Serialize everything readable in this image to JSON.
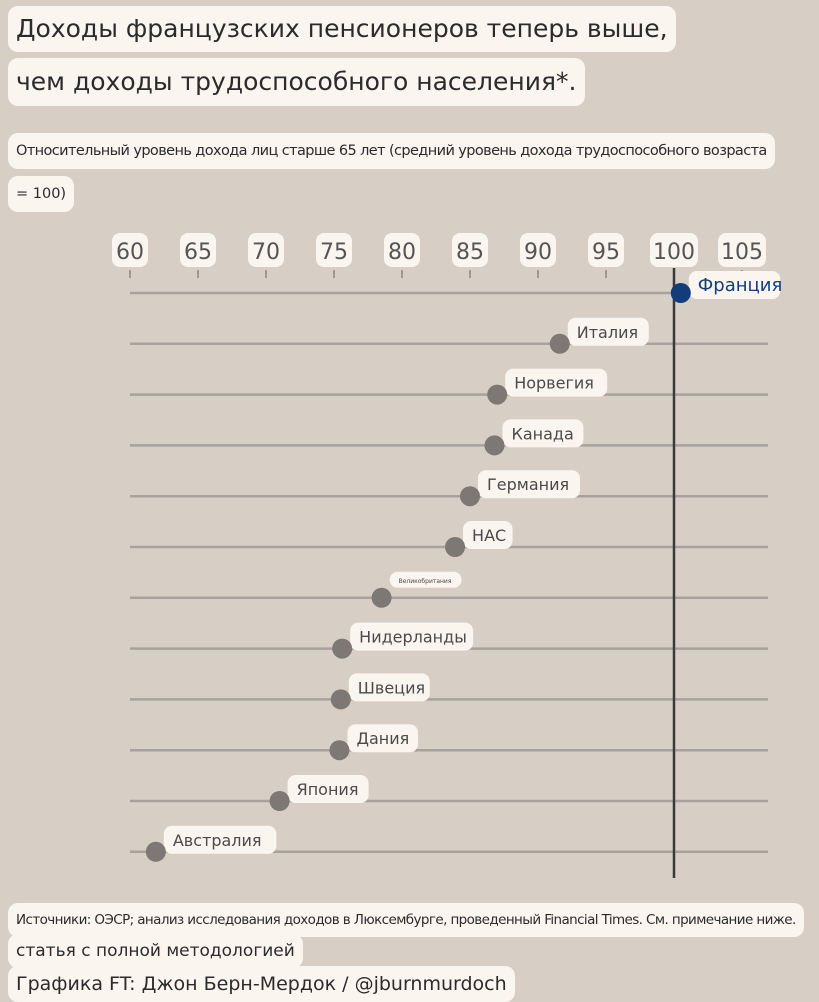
{
  "title_line1": "Доходы французских пенсионеров теперь выше,",
  "title_line2": "чем доходы трудоспособного населения*.",
  "subtitle_line1": "Относительный уровень дохода лиц старше 65 лет (средний уровень дохода трудоспособного возраста",
  "subtitle_line2": "= 100)",
  "footer": {
    "sources": "Источники: ОЭСР; анализ исследования доходов в Люксембурге, проведенный Financial Times. См. примечание ниже.",
    "article": "статья с полной методологией",
    "credit": "Графика FT: Джон Берн-Мердок / @jburnmurdoch"
  },
  "chart_data": {
    "type": "dot",
    "xlim": [
      60,
      105
    ],
    "xticks": [
      "60",
      "65",
      "70",
      "75",
      "80",
      "85",
      "90",
      "95",
      "100",
      "105"
    ],
    "reference_line": 100,
    "colors": {
      "highlight": "#123d7a",
      "default": "#7d7873",
      "background": "#d7cec6"
    },
    "series": [
      {
        "label": "Франция",
        "value": 100.5,
        "highlight": true
      },
      {
        "label": "Италия",
        "value": 91.6
      },
      {
        "label": "Норвегия",
        "value": 87.0
      },
      {
        "label": "Канада",
        "value": 86.8
      },
      {
        "label": "Германия",
        "value": 85.0
      },
      {
        "label": "НАС",
        "value": 83.9
      },
      {
        "label": "Великобритания",
        "value": 78.5,
        "small": true
      },
      {
        "label": "Нидерланды",
        "value": 75.6
      },
      {
        "label": "Швеция",
        "value": 75.5
      },
      {
        "label": "Дания",
        "value": 75.4
      },
      {
        "label": "Япония",
        "value": 71.0
      },
      {
        "label": "Австралия",
        "value": 61.9
      }
    ]
  }
}
